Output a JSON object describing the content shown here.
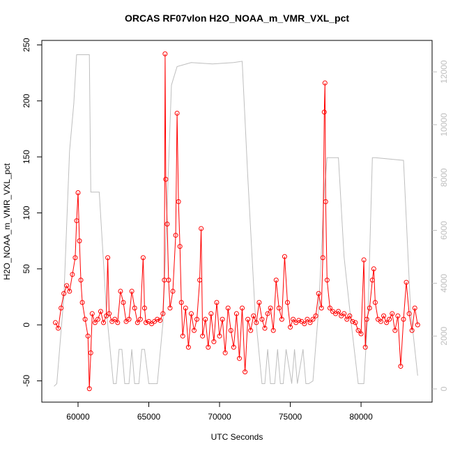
{
  "chart_data": {
    "type": "line",
    "title": "ORCAS RF07vlon H2O_NOAA_m_VMR_VXL_pct",
    "x_label": "UTC Seconds",
    "y_label": "H2O_NOAA_m_VMR_VXL_pct",
    "xlim": [
      57440,
      85020
    ],
    "xticks": [
      60000,
      65000,
      70000,
      75000,
      80000
    ],
    "ylim": [
      -69,
      254
    ],
    "yticks": [
      -50,
      0,
      50,
      100,
      150,
      200,
      250
    ],
    "y2lim": [
      -500,
      13190
    ],
    "y2ticks": [
      0,
      2000,
      4000,
      6000,
      8000,
      10000,
      12000
    ],
    "series": [
      {
        "color": "#ff0000",
        "marker": "circle",
        "x": [
          58400,
          58600,
          58800,
          59000,
          59200,
          59400,
          59600,
          59800,
          59900,
          60000,
          60100,
          60200,
          60300,
          60500,
          60700,
          60800,
          60900,
          61000,
          61200,
          61400,
          61600,
          61800,
          62000,
          62100,
          62200,
          62400,
          62600,
          62800,
          63000,
          63200,
          63400,
          63600,
          63800,
          64000,
          64200,
          64400,
          64600,
          64700,
          64800,
          65000,
          65200,
          65400,
          65600,
          65800,
          66000,
          66100,
          66150,
          66200,
          66300,
          66400,
          66500,
          66700,
          66900,
          67000,
          67100,
          67200,
          67300,
          67400,
          67600,
          67800,
          68000,
          68200,
          68400,
          68600,
          68700,
          68800,
          69000,
          69200,
          69400,
          69600,
          69800,
          70000,
          70200,
          70400,
          70600,
          70800,
          71000,
          71200,
          71400,
          71600,
          71800,
          72000,
          72200,
          72400,
          72600,
          72800,
          73000,
          73200,
          73400,
          73600,
          73800,
          74000,
          74200,
          74400,
          74600,
          74800,
          75000,
          75200,
          75400,
          75600,
          75800,
          76000,
          76200,
          76400,
          76600,
          76800,
          77000,
          77200,
          77300,
          77400,
          77450,
          77500,
          77600,
          77800,
          78000,
          78200,
          78400,
          78600,
          78800,
          79000,
          79200,
          79400,
          79600,
          79800,
          80000,
          80200,
          80300,
          80400,
          80600,
          80800,
          80900,
          81000,
          81200,
          81400,
          81600,
          81800,
          82000,
          82200,
          82400,
          82600,
          82800,
          83000,
          83200,
          83400,
          83600,
          83800,
          84000
        ],
        "values": [
          2,
          -3,
          15,
          28,
          35,
          30,
          45,
          60,
          93,
          118,
          75,
          40,
          20,
          5,
          -10,
          -57,
          -25,
          10,
          2,
          5,
          12,
          2,
          8,
          60,
          10,
          3,
          5,
          2,
          30,
          20,
          3,
          5,
          30,
          15,
          2,
          5,
          60,
          15,
          2,
          3,
          1,
          3,
          5,
          4,
          10,
          40,
          242,
          130,
          90,
          40,
          15,
          30,
          80,
          189,
          110,
          70,
          20,
          -10,
          15,
          -20,
          10,
          -5,
          5,
          40,
          86,
          -10,
          5,
          -20,
          10,
          -15,
          20,
          -10,
          5,
          -25,
          15,
          -5,
          -20,
          10,
          -30,
          15,
          -42,
          5,
          -5,
          8,
          2,
          20,
          5,
          -3,
          10,
          15,
          -5,
          40,
          15,
          5,
          61,
          20,
          -2,
          5,
          2,
          4,
          3,
          1,
          5,
          2,
          5,
          8,
          28,
          15,
          60,
          190,
          216,
          110,
          40,
          15,
          12,
          10,
          12,
          8,
          10,
          5,
          8,
          3,
          2,
          -5,
          -8,
          58,
          -20,
          5,
          15,
          40,
          50,
          20,
          5,
          3,
          8,
          2,
          5,
          10,
          -5,
          8,
          -37,
          5,
          38,
          10,
          -5,
          15,
          0
        ]
      },
      {
        "color": "#bebebe",
        "axis": "y2",
        "x": [
          58300,
          58500,
          59000,
          59400,
          59700,
          59900,
          60800,
          60900,
          61500,
          62000,
          62500,
          62700,
          62900,
          63100,
          63300,
          63600,
          63800,
          64000,
          64300,
          64500,
          64700,
          65000,
          65600,
          66000,
          66300,
          66600,
          67000,
          68000,
          69500,
          71000,
          71600,
          72000,
          72500,
          73000,
          73200,
          73400,
          73600,
          73900,
          74100,
          74300,
          74500,
          74700,
          75100,
          75300,
          75500,
          75900,
          76100,
          76300,
          76600,
          77000,
          77400,
          77600,
          78400,
          78800,
          79300,
          79800,
          80000,
          80200,
          80500,
          80800,
          81000,
          83000,
          83500,
          84000
        ],
        "values": [
          100,
          200,
          3500,
          9000,
          10800,
          12650,
          12650,
          7450,
          7450,
          3000,
          200,
          200,
          1500,
          1500,
          200,
          200,
          1500,
          200,
          200,
          1500,
          1500,
          200,
          200,
          2500,
          7000,
          11500,
          12200,
          12350,
          12300,
          12350,
          12400,
          8000,
          3000,
          200,
          200,
          1500,
          200,
          200,
          1500,
          200,
          200,
          1500,
          200,
          1500,
          200,
          1500,
          200,
          200,
          300,
          3000,
          7500,
          8750,
          8750,
          5000,
          2500,
          200,
          200,
          200,
          3000,
          8750,
          8750,
          8650,
          3000,
          500
        ]
      }
    ]
  }
}
